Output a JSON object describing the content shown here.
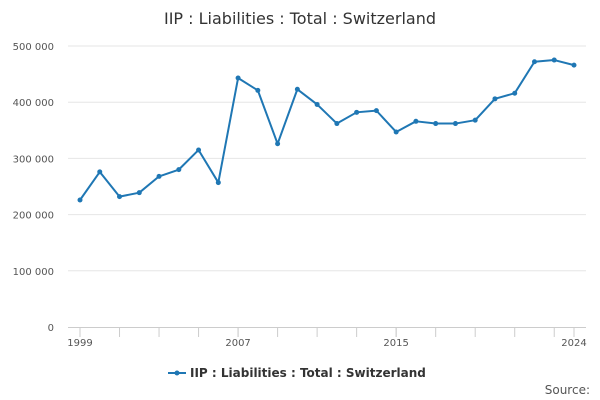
{
  "chart_data": {
    "type": "line",
    "title": "IIP : Liabilities : Total : Switzerland",
    "x_tick_labels": [
      "1999",
      "2007",
      "2015",
      "2024"
    ],
    "y_tick_labels": [
      "0",
      "100 000",
      "200 000",
      "300 000",
      "400 000",
      "500 000"
    ],
    "ylim": [
      0,
      500000
    ],
    "xlim": [
      1999,
      2024
    ],
    "grid": true,
    "legend_position": "bottom",
    "series": [
      {
        "name": "IIP : Liabilities : Total : Switzerland",
        "color": "#1f77b4",
        "x": [
          1999,
          2000,
          2001,
          2002,
          2003,
          2004,
          2005,
          2006,
          2007,
          2008,
          2009,
          2010,
          2011,
          2012,
          2013,
          2014,
          2015,
          2016,
          2017,
          2018,
          2019,
          2020,
          2021,
          2022,
          2023,
          2024
        ],
        "values": [
          226000,
          276000,
          232000,
          239000,
          268000,
          280000,
          315000,
          257000,
          443000,
          421000,
          326000,
          423000,
          396000,
          362000,
          382000,
          385000,
          347000,
          366000,
          362000,
          362000,
          368000,
          406000,
          416000,
          472000,
          475000,
          466000
        ]
      }
    ]
  },
  "source_label": "Source:"
}
